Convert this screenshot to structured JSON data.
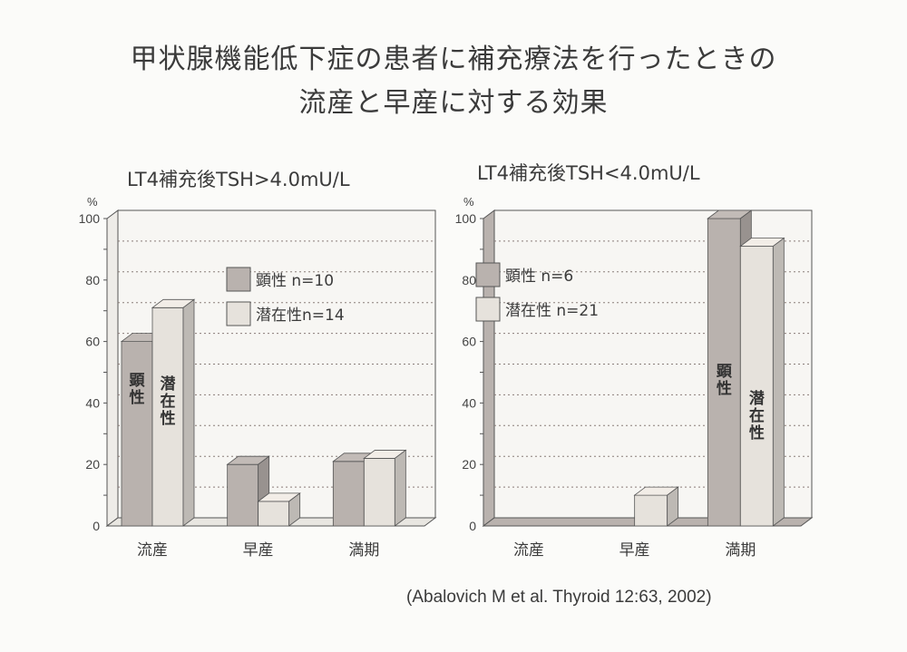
{
  "title": {
    "line1": "甲状腺機能低下症の患者に補充療法を行ったときの",
    "line2": "流産と早産に対する効果"
  },
  "citation": "(Abalovich M et al. Thyroid 12:63, 2002)",
  "colors": {
    "overt": "#b9b2ae",
    "subclinical": "#e6e2dc",
    "grid": "#8a7e7a",
    "axis": "#555555"
  },
  "chart_data": [
    {
      "type": "bar",
      "title": "LT4補充後TSH>4.0mU/L",
      "ylabel": "%",
      "xlabel": "",
      "ylim": [
        0,
        100
      ],
      "yticks": [
        0,
        20,
        40,
        60,
        80,
        100
      ],
      "grid": true,
      "legend_position": "upper-center",
      "categories": [
        "流産",
        "早産",
        "満期"
      ],
      "series": [
        {
          "name": "顕性 n=10",
          "short": "顕性",
          "values": [
            60,
            20,
            21
          ]
        },
        {
          "name": "潜在性n=14",
          "short": "潜在性",
          "values": [
            71,
            8,
            22
          ]
        }
      ],
      "bar_labels": {
        "category_index": 0,
        "labels": [
          "顕性",
          "潜在性"
        ]
      }
    },
    {
      "type": "bar",
      "title": "LT4補充後TSH<4.0mU/L",
      "ylabel": "%",
      "xlabel": "",
      "ylim": [
        0,
        100
      ],
      "yticks": [
        0,
        20,
        40,
        60,
        80,
        100
      ],
      "grid": true,
      "legend_position": "upper-left",
      "categories": [
        "流産",
        "早産",
        "満期"
      ],
      "series": [
        {
          "name": "顕性 n=6",
          "short": "顕性",
          "values": [
            0,
            0,
            100
          ]
        },
        {
          "name": "潜在性 n=21",
          "short": "潜在性",
          "values": [
            0,
            10,
            91
          ]
        }
      ],
      "bar_labels": {
        "category_index": 2,
        "labels": [
          "顕性",
          "潜在性"
        ]
      }
    }
  ]
}
